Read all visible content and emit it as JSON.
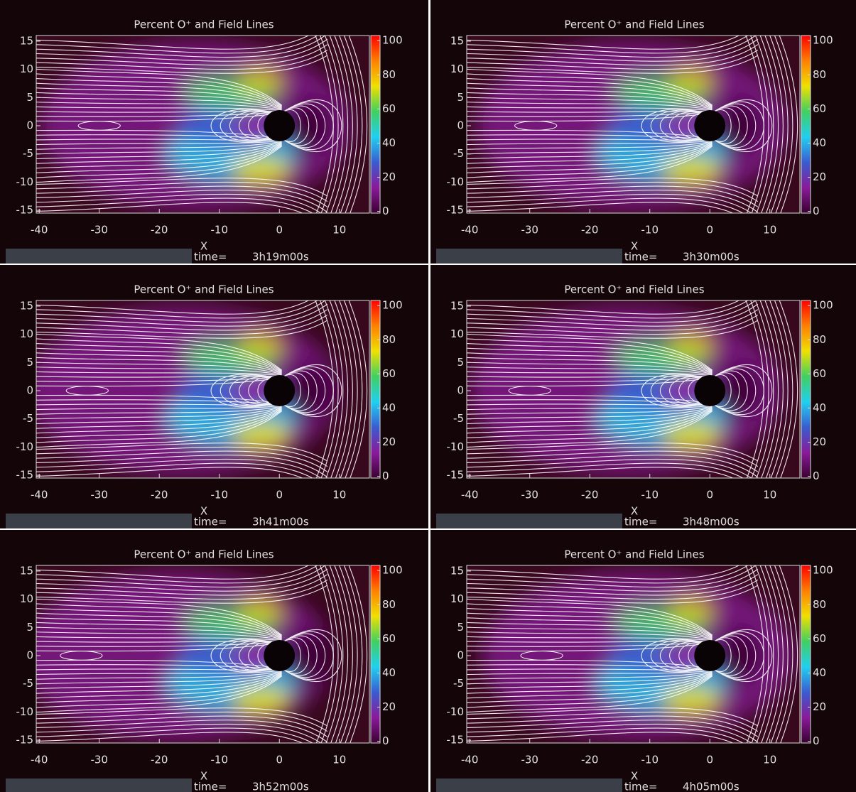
{
  "chart_data": [
    {
      "type": "contour",
      "title": "Percent O⁺ and Field Lines",
      "xlabel": "X",
      "xlim": [
        -40.5,
        15
      ],
      "ylim": [
        -15.5,
        16
      ],
      "xticks": [
        -40,
        -30,
        -20,
        -10,
        0,
        10
      ],
      "yticks": [
        -15,
        -10,
        -5,
        0,
        5,
        10,
        15
      ],
      "clim": [
        -1,
        103
      ],
      "cticks": [
        0,
        20,
        40,
        60,
        80,
        100
      ],
      "colormap": [
        "#3a0030",
        "#8a1a9a",
        "#3a5cd0",
        "#20d0f0",
        "#40d060",
        "#f0e000",
        "#ff8000",
        "#ff0000"
      ],
      "time_label": "time=",
      "time": "3h19m00s"
    },
    {
      "type": "contour",
      "title": "Percent O⁺ and Field Lines",
      "xlabel": "X",
      "xlim": [
        -40.5,
        15
      ],
      "ylim": [
        -15.5,
        16
      ],
      "xticks": [
        -40,
        -30,
        -20,
        -10,
        0,
        10
      ],
      "yticks": [
        -15,
        -10,
        -5,
        0,
        5,
        10,
        15
      ],
      "clim": [
        -1,
        103
      ],
      "cticks": [
        0,
        20,
        40,
        60,
        80,
        100
      ],
      "colormap": [
        "#3a0030",
        "#8a1a9a",
        "#3a5cd0",
        "#20d0f0",
        "#40d060",
        "#f0e000",
        "#ff8000",
        "#ff0000"
      ],
      "time_label": "time=",
      "time": "3h30m00s"
    },
    {
      "type": "contour",
      "title": "Percent O⁺ and Field Lines",
      "xlabel": "X",
      "xlim": [
        -40.5,
        15
      ],
      "ylim": [
        -15.5,
        16
      ],
      "xticks": [
        -40,
        -30,
        -20,
        -10,
        0,
        10
      ],
      "yticks": [
        -15,
        -10,
        -5,
        0,
        5,
        10,
        15
      ],
      "clim": [
        -1,
        103
      ],
      "cticks": [
        0,
        20,
        40,
        60,
        80,
        100
      ],
      "colormap": [
        "#3a0030",
        "#8a1a9a",
        "#3a5cd0",
        "#20d0f0",
        "#40d060",
        "#f0e000",
        "#ff8000",
        "#ff0000"
      ],
      "time_label": "time=",
      "time": "3h41m00s"
    },
    {
      "type": "contour",
      "title": "Percent O⁺ and Field Lines",
      "xlabel": "X",
      "xlim": [
        -40.5,
        15
      ],
      "ylim": [
        -15.5,
        16
      ],
      "xticks": [
        -40,
        -30,
        -20,
        -10,
        0,
        10
      ],
      "yticks": [
        -15,
        -10,
        -5,
        0,
        5,
        10,
        15
      ],
      "clim": [
        -1,
        103
      ],
      "cticks": [
        0,
        20,
        40,
        60,
        80,
        100
      ],
      "colormap": [
        "#3a0030",
        "#8a1a9a",
        "#3a5cd0",
        "#20d0f0",
        "#40d060",
        "#f0e000",
        "#ff8000",
        "#ff0000"
      ],
      "time_label": "time=",
      "time": "3h48m00s"
    },
    {
      "type": "contour",
      "title": "Percent O⁺ and Field Lines",
      "xlabel": "X",
      "xlim": [
        -40.5,
        15
      ],
      "ylim": [
        -15.5,
        16
      ],
      "xticks": [
        -40,
        -30,
        -20,
        -10,
        0,
        10
      ],
      "yticks": [
        -15,
        -10,
        -5,
        0,
        5,
        10,
        15
      ],
      "clim": [
        -1,
        103
      ],
      "cticks": [
        0,
        20,
        40,
        60,
        80,
        100
      ],
      "colormap": [
        "#3a0030",
        "#8a1a9a",
        "#3a5cd0",
        "#20d0f0",
        "#40d060",
        "#f0e000",
        "#ff8000",
        "#ff0000"
      ],
      "time_label": "time=",
      "time": "3h52m00s"
    },
    {
      "type": "contour",
      "title": "Percent O⁺ and Field Lines",
      "xlabel": "X",
      "xlim": [
        -40.5,
        15
      ],
      "ylim": [
        -15.5,
        16
      ],
      "xticks": [
        -40,
        -30,
        -20,
        -10,
        0,
        10
      ],
      "yticks": [
        -15,
        -10,
        -5,
        0,
        5,
        10,
        15
      ],
      "clim": [
        -1,
        103
      ],
      "cticks": [
        0,
        20,
        40,
        60,
        80,
        100
      ],
      "colormap": [
        "#3a0030",
        "#8a1a9a",
        "#3a5cd0",
        "#20d0f0",
        "#40d060",
        "#f0e000",
        "#ff8000",
        "#ff0000"
      ],
      "time_label": "time=",
      "time": "4h05m00s"
    }
  ]
}
